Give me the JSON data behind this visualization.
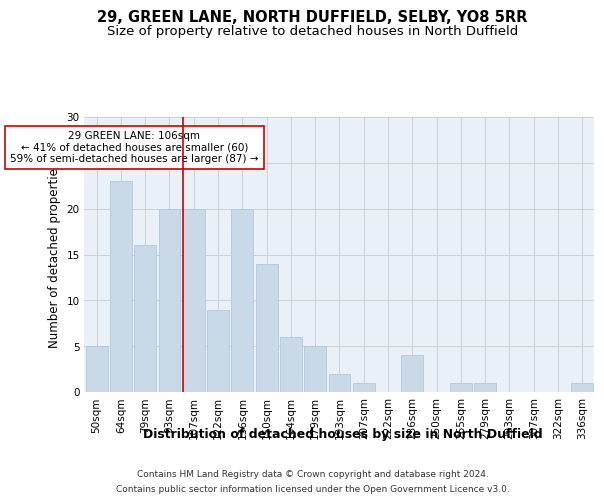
{
  "title_line1": "29, GREEN LANE, NORTH DUFFIELD, SELBY, YO8 5RR",
  "title_line2": "Size of property relative to detached houses in North Duffield",
  "xlabel": "Distribution of detached houses by size in North Duffield",
  "ylabel": "Number of detached properties",
  "footnote1": "Contains HM Land Registry data © Crown copyright and database right 2024.",
  "footnote2": "Contains public sector information licensed under the Open Government Licence v3.0.",
  "categories": [
    "50sqm",
    "64sqm",
    "79sqm",
    "93sqm",
    "107sqm",
    "122sqm",
    "136sqm",
    "150sqm",
    "164sqm",
    "179sqm",
    "193sqm",
    "207sqm",
    "222sqm",
    "236sqm",
    "250sqm",
    "265sqm",
    "279sqm",
    "293sqm",
    "307sqm",
    "322sqm",
    "336sqm"
  ],
  "values": [
    5,
    23,
    16,
    20,
    20,
    9,
    20,
    14,
    6,
    5,
    2,
    1,
    0,
    4,
    0,
    1,
    1,
    0,
    0,
    0,
    1
  ],
  "bar_color": "#c9d9e8",
  "bar_edge_color": "#a8c4d8",
  "vline_x_index": 4,
  "vline_color": "#cc0000",
  "annotation_text": "29 GREEN LANE: 106sqm\n← 41% of detached houses are smaller (60)\n59% of semi-detached houses are larger (87) →",
  "annotation_box_color": "#ffffff",
  "annotation_box_edge_color": "#cc0000",
  "ylim": [
    0,
    30
  ],
  "yticks": [
    0,
    5,
    10,
    15,
    20,
    25,
    30
  ],
  "background_color": "#ffffff",
  "axes_background": "#eaf0f8",
  "grid_color": "#cccccc",
  "title_fontsize": 10.5,
  "subtitle_fontsize": 9.5,
  "xlabel_fontsize": 9,
  "ylabel_fontsize": 8.5,
  "tick_fontsize": 7.5,
  "annotation_fontsize": 7.5,
  "footnote_fontsize": 6.5
}
